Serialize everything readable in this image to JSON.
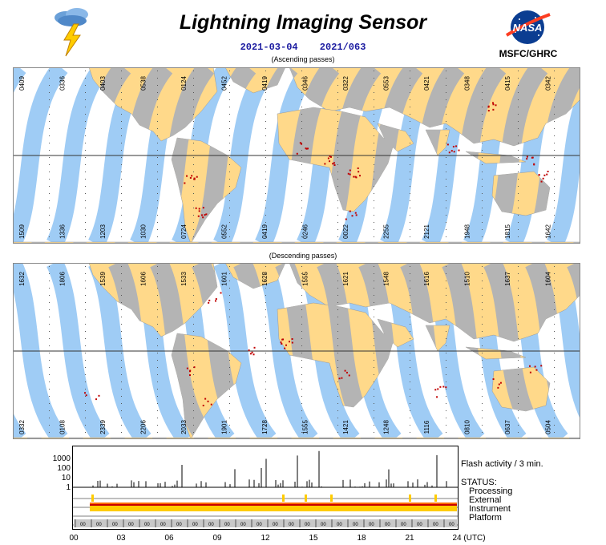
{
  "title": "Lightning Imaging Sensor",
  "date": "2021-03-04",
  "doy": "2021/063",
  "org": "MSFC/GHRC",
  "logo_text": "NASA",
  "ascending_label": "(Ascending passes)",
  "descending_label": "(Descending passes)",
  "ascending_top_times": [
    "0409",
    "0336",
    "0403",
    "0538",
    "0124",
    "0452",
    "0419",
    "0346",
    "0322",
    "0553",
    "0421",
    "0348",
    "0415",
    "0342"
  ],
  "ascending_bottom_times": [
    "1509",
    "1336",
    "1203",
    "1030",
    "0724",
    "0552",
    "0419",
    "0246",
    "0022",
    "2255",
    "2121",
    "1948",
    "1815",
    "1642"
  ],
  "descending_top_times": [
    "1632",
    "1806",
    "1539",
    "1606",
    "1533",
    "1601",
    "1628",
    "1555",
    "1621",
    "1548",
    "1616",
    "1510",
    "1637",
    "1604"
  ],
  "descending_bottom_times": [
    "0332",
    "0108",
    "2339",
    "2206",
    "2033",
    "1901",
    "1728",
    "1555",
    "1421",
    "1248",
    "1116",
    "0810",
    "0637",
    "0504"
  ],
  "flash_axis": [
    "1000",
    "100",
    "10",
    "1"
  ],
  "flash_label": "Flash activity / 3 min.",
  "status_label": "STATUS:",
  "status_rows": [
    "Processing",
    "External",
    "Instrument",
    "Platform"
  ],
  "platform_mark": "00",
  "x_ticks": [
    "00",
    "03",
    "06",
    "09",
    "12",
    "15",
    "18",
    "21",
    "24"
  ],
  "x_unit": "(UTC)",
  "colors": {
    "land": "#ffd98a",
    "land_dark": "#b4b4b4",
    "swath": "#9fccf5",
    "lightning": "#c00000",
    "title_blue": "#1a1aa0"
  },
  "chart_data": {
    "type": "bar",
    "title": "Flash activity / 3 min.",
    "x_range_utc_hours": [
      0,
      24
    ],
    "y_scale": "log",
    "ylim": [
      1,
      1000
    ]
  }
}
